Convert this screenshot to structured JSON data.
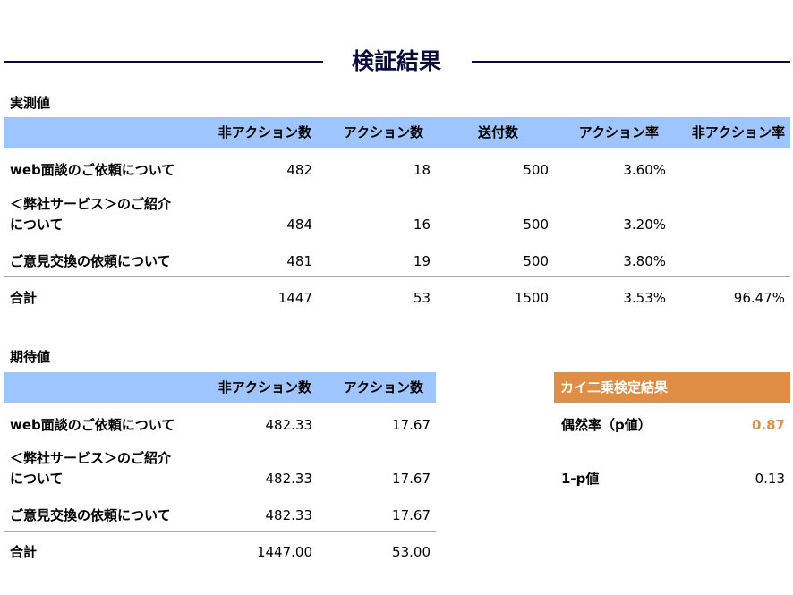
{
  "title": "検証結果",
  "observed": {
    "label": "実測値",
    "headers": [
      "非アクション数",
      "アクション数",
      "送付数",
      "アクション率",
      "非アクション率"
    ],
    "rows": [
      {
        "label1": "web面談のご依頼について",
        "label2": "",
        "values": [
          "482",
          "18",
          "500",
          "3.60%",
          ""
        ]
      },
      {
        "label1": "＜弊社サービス＞のご紹介",
        "label2": "について",
        "values": [
          "484",
          "16",
          "500",
          "3.20%",
          ""
        ]
      },
      {
        "label1": "ご意見交換の依頼について",
        "label2": "",
        "values": [
          "481",
          "19",
          "500",
          "3.80%",
          ""
        ]
      }
    ],
    "total": {
      "label": "合計",
      "values": [
        "1447",
        "53",
        "1500",
        "3.53%",
        "96.47%"
      ]
    }
  },
  "expected": {
    "label": "期待値",
    "headers": [
      "非アクション数",
      "アクション数"
    ],
    "rows": [
      {
        "label1": "web面談のご依頼について",
        "label2": "",
        "values": [
          "482.33",
          "17.67"
        ]
      },
      {
        "label1": "＜弊社サービス＞のご紹介",
        "label2": "について",
        "values": [
          "482.33",
          "17.67"
        ]
      },
      {
        "label1": "ご意見交換の依頼について",
        "label2": "",
        "values": [
          "482.33",
          "17.67"
        ]
      }
    ],
    "total": {
      "label": "合計",
      "values": [
        "1447.00",
        "53.00"
      ]
    }
  },
  "chi_square": {
    "header": "カイ二乗検定結果",
    "p_label": "偶然率（p値）",
    "p_value": "0.87",
    "one_minus_p_label": "1-p値",
    "one_minus_p_value": "0.13"
  },
  "colors": {
    "header_blue": "#9fc5ff",
    "accent_orange": "#e08e45",
    "title_navy": "#0a0a3c",
    "separator": "#a7a7a7"
  }
}
